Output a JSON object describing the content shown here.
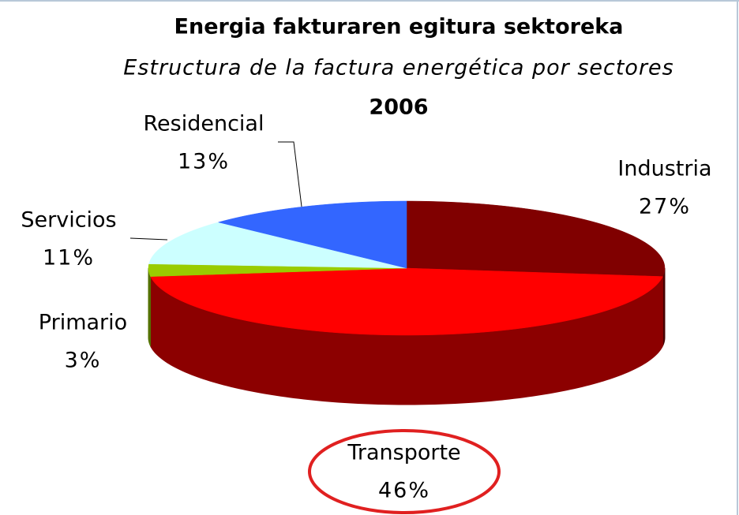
{
  "chart_data": {
    "type": "pie",
    "title": "Energia fakturaren egitura sektoreka",
    "subtitle": "Estructura de la factura energética por sectores",
    "year": "2006",
    "categories": [
      "Industria",
      "Transporte",
      "Primario",
      "Servicios",
      "Residencial"
    ],
    "values": [
      27,
      46,
      3,
      11,
      13
    ],
    "value_labels": [
      "27%",
      "46%",
      "3%",
      "11%",
      "13%"
    ],
    "colors": [
      "#800000",
      "#ff0000",
      "#99cc00",
      "#ccffff",
      "#3366ff"
    ]
  }
}
